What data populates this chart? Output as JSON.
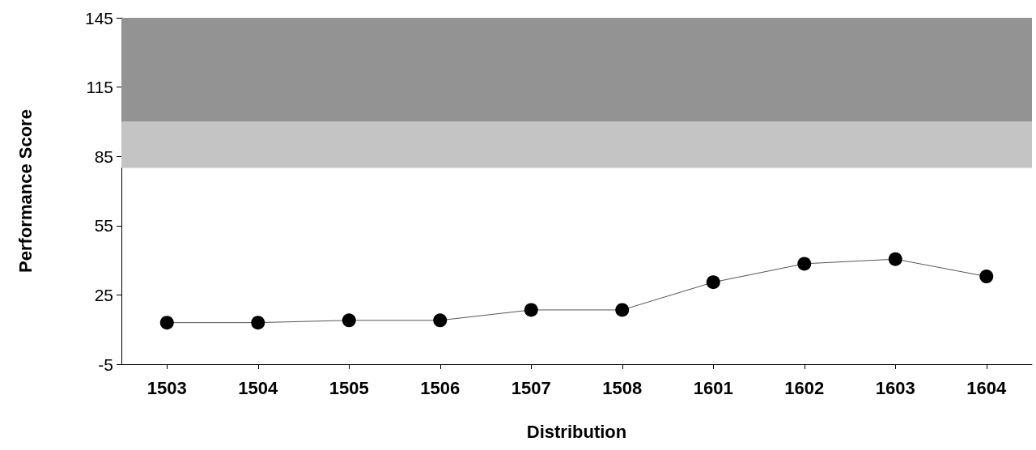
{
  "chart_data": {
    "type": "line",
    "xlabel": "Distribution",
    "ylabel": "Performance Score",
    "categories": [
      "1503",
      "1504",
      "1505",
      "1506",
      "1507",
      "1508",
      "1601",
      "1602",
      "1603",
      "1604"
    ],
    "series": [
      {
        "color": "#000000",
        "values": [
          13,
          13,
          14,
          14,
          18.5,
          18.5,
          30.5,
          38.5,
          40.5,
          33
        ]
      }
    ],
    "ylim": [
      -5,
      145
    ],
    "yticks": [
      -5,
      25,
      55,
      85,
      115,
      145
    ],
    "bands": [
      {
        "axis": "y",
        "from": 100,
        "to": 145,
        "color": "#939393"
      },
      {
        "axis": "y",
        "from": 80,
        "to": 100,
        "color": "#c4c4c4"
      }
    ],
    "marker": "circle",
    "line_style": "solid",
    "grid": false
  }
}
